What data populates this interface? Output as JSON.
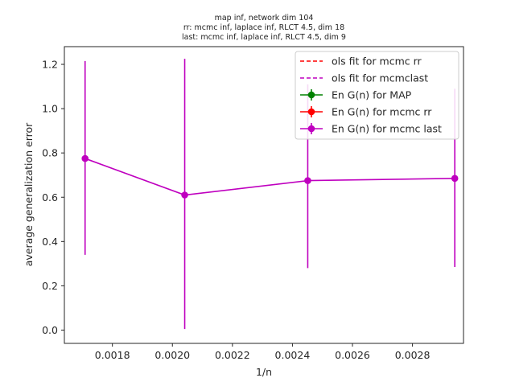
{
  "chart_data": {
    "type": "line",
    "title_lines": [
      "map inf, network dim 104",
      "rr: mcmc inf, laplace inf, RLCT 4.5, dim 18",
      "last: mcmc inf, laplace inf, RLCT 4.5, dim 9"
    ],
    "xlabel": "1/n",
    "ylabel": "average generalization error",
    "xlim": [
      0.00164,
      0.00297
    ],
    "ylim": [
      -0.06,
      1.28
    ],
    "xticks": [
      "0.0018",
      "0.0020",
      "0.0022",
      "0.0024",
      "0.0026",
      "0.0028"
    ],
    "xtick_values": [
      0.0018,
      0.002,
      0.0022,
      0.0024,
      0.0026,
      0.0028
    ],
    "yticks": [
      "0.0",
      "0.2",
      "0.4",
      "0.6",
      "0.8",
      "1.0",
      "1.2"
    ],
    "ytick_values": [
      0.0,
      0.2,
      0.4,
      0.6,
      0.8,
      1.0,
      1.2
    ],
    "grid": false,
    "legend_position": "upper right",
    "legend": [
      {
        "label": "ols fit for mcmc rr",
        "color": "#ff0000",
        "style": "dashed"
      },
      {
        "label": "ols fit for mcmclast",
        "color": "#bf00bf",
        "style": "dashed"
      },
      {
        "label": "En G(n) for MAP",
        "color": "#008000",
        "style": "errorbar"
      },
      {
        "label": "En G(n) for mcmc rr",
        "color": "#ff0000",
        "style": "errorbar"
      },
      {
        "label": "En G(n) for mcmc last",
        "color": "#bf00bf",
        "style": "errorbar"
      }
    ],
    "series": [
      {
        "name": "En G(n) for mcmc last",
        "color": "#bf00bf",
        "x": [
          0.001709,
          0.002041,
          0.002451,
          0.002941
        ],
        "y": [
          0.775,
          0.61,
          0.675,
          0.685
        ],
        "yerr_low": [
          0.34,
          0.005,
          0.28,
          0.285
        ],
        "yerr_high": [
          1.215,
          1.225,
          1.11,
          1.09
        ]
      }
    ]
  }
}
